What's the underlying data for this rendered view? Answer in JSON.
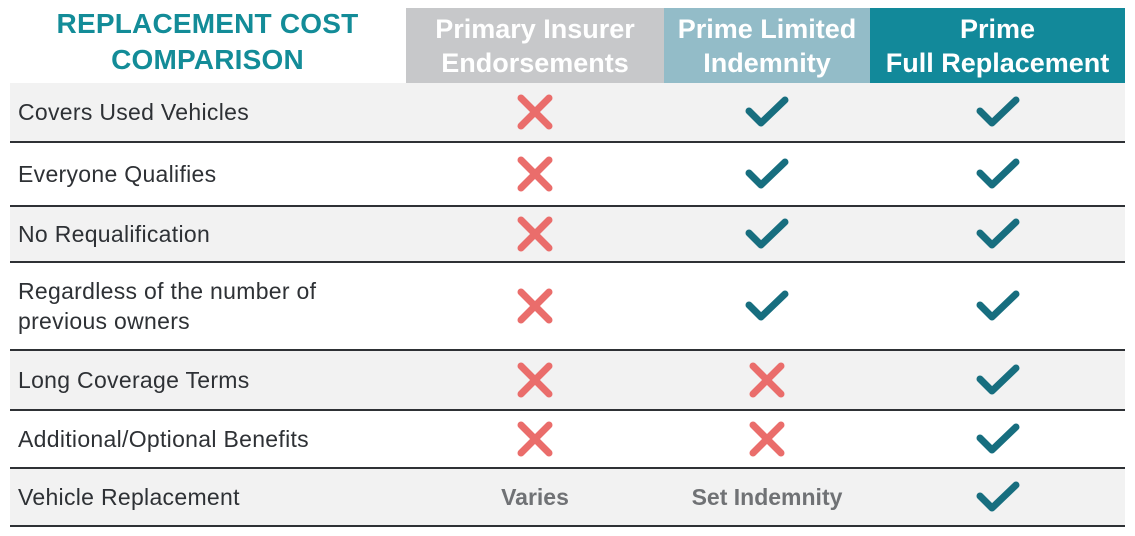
{
  "title": {
    "line1": "REPLACEMENT COST",
    "line2": "COMPARISON"
  },
  "columns": [
    {
      "line1": "Primary Insurer",
      "line2": "Endorsements"
    },
    {
      "line1": "Prime Limited",
      "line2": "Indemnity"
    },
    {
      "line1": "Prime",
      "line2": "Full Replacement"
    }
  ],
  "colors": {
    "check": "#176e7f",
    "cross": "#ea6d6b",
    "title": "#138c98"
  },
  "rows": [
    {
      "label": "Covers Used Vehicles",
      "values": [
        "cross-icon",
        "check-icon",
        "check-icon"
      ]
    },
    {
      "label": "Everyone Qualifies",
      "values": [
        "cross-icon",
        "check-icon",
        "check-icon"
      ]
    },
    {
      "label": "No Requalification",
      "values": [
        "cross-icon",
        "check-icon",
        "check-icon"
      ]
    },
    {
      "label": "Regardless of the number of previous owners",
      "values": [
        "cross-icon",
        "check-icon",
        "check-icon"
      ]
    },
    {
      "label": "Long Coverage Terms",
      "values": [
        "cross-icon",
        "cross-icon",
        "check-icon"
      ]
    },
    {
      "label": "Additional/Optional Benefits",
      "values": [
        "cross-icon",
        "cross-icon",
        "check-icon"
      ]
    },
    {
      "label": "Vehicle Replacement",
      "values": [
        "Varies",
        "Set Indemnity",
        "check-icon"
      ]
    }
  ]
}
